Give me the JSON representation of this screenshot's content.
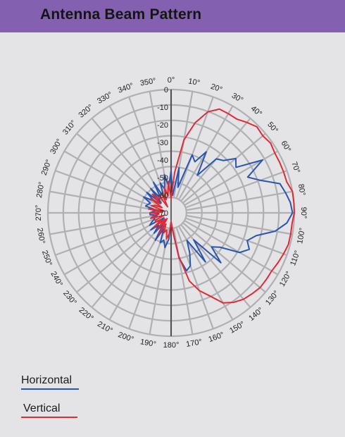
{
  "header": {
    "title": "Antenna Beam Pattern"
  },
  "colors": {
    "header_bg": "#8461b0",
    "horizontal": "#2a55b0",
    "vertical": "#e02a35",
    "grid": "#b0b0b4"
  },
  "legend": {
    "horizontal_label": "Horizontal",
    "vertical_label": "Vertical"
  },
  "chart_data": {
    "type": "polar",
    "title": "Antenna Beam Pattern",
    "angular_unit": "degrees",
    "angle_ticks": [
      "0°",
      "10°",
      "20°",
      "30°",
      "40°",
      "50°",
      "60°",
      "70°",
      "80°",
      "90°",
      "100°",
      "110°",
      "120°",
      "130°",
      "140°",
      "150°",
      "160°",
      "170°",
      "180°",
      "190°",
      "200°",
      "210°",
      "220°",
      "230°",
      "240°",
      "250°",
      "260°",
      "270°",
      "280°",
      "290°",
      "300°",
      "310°",
      "320°",
      "330°",
      "340°",
      "350°"
    ],
    "radial_ticks": [
      "0",
      "-10",
      "-20",
      "-30",
      "-40",
      "-50",
      "-60",
      "-70"
    ],
    "radial_range": [
      -70,
      0
    ],
    "legend_position": "bottom-left",
    "series": [
      {
        "name": "Horizontal",
        "color": "#2a55b0",
        "angles": [
          0,
          5,
          10,
          15,
          20,
          25,
          30,
          35,
          40,
          45,
          50,
          55,
          60,
          65,
          70,
          75,
          80,
          85,
          90,
          95,
          100,
          105,
          110,
          115,
          120,
          125,
          130,
          135,
          140,
          145,
          150,
          155,
          160,
          165,
          170,
          175,
          180,
          185,
          190,
          195,
          200,
          205,
          210,
          215,
          220,
          225,
          230,
          235,
          240,
          245,
          250,
          255,
          260,
          265,
          270,
          275,
          280,
          285,
          290,
          295,
          300,
          305,
          310,
          315,
          320,
          325,
          330,
          335,
          340,
          345,
          350,
          355
        ],
        "values": [
          -46,
          -60,
          -44,
          -55,
          -35,
          -38,
          -30,
          -44,
          -30,
          -28,
          -22,
          -25,
          -10,
          -22,
          -16,
          -6,
          -4,
          -2,
          -1,
          -4,
          -10,
          -20,
          -24,
          -21,
          -25,
          -36,
          -40,
          -30,
          -50,
          -36,
          -52,
          -45,
          -38,
          -36,
          -44,
          -60,
          -65,
          -55,
          -50,
          -54,
          -52,
          -60,
          -52,
          -62,
          -55,
          -60,
          -55,
          -65,
          -56,
          -58,
          -60,
          -60,
          -62,
          -58,
          -58,
          -60,
          -62,
          -55,
          -56,
          -57,
          -52,
          -58,
          -52,
          -62,
          -52,
          -60,
          -50,
          -60,
          -52,
          -56,
          -48,
          -55
        ]
      },
      {
        "name": "Vertical",
        "color": "#e02a35",
        "angles": [
          0,
          5,
          10,
          15,
          20,
          25,
          30,
          35,
          40,
          45,
          50,
          55,
          60,
          65,
          70,
          75,
          80,
          85,
          90,
          95,
          100,
          105,
          110,
          115,
          120,
          125,
          130,
          135,
          140,
          145,
          150,
          155,
          160,
          165,
          170,
          175,
          180,
          185,
          190,
          195,
          200,
          205,
          210,
          215,
          220,
          225,
          230,
          235,
          240,
          245,
          250,
          255,
          260,
          265,
          270,
          275,
          280,
          285,
          290,
          295,
          300,
          305,
          310,
          315,
          320,
          325,
          330,
          335,
          340,
          345,
          350,
          355
        ],
        "values": [
          -62,
          -47,
          -28,
          -17,
          -9,
          -5,
          -5,
          -5,
          -3,
          -1,
          -2,
          -1,
          -2,
          -2,
          -2,
          -2,
          0,
          0,
          0,
          -1,
          -1,
          -1,
          -2,
          -3,
          -4,
          -4,
          -4,
          -5,
          -6,
          -8,
          -11,
          -18,
          -23,
          -30,
          -45,
          -60,
          -65,
          -58,
          -55,
          -60,
          -58,
          -63,
          -56,
          -66,
          -58,
          -65,
          -57,
          -63,
          -60,
          -60,
          -66,
          -58,
          -60,
          -63,
          -58,
          -65,
          -57,
          -66,
          -58,
          -60,
          -64,
          -56,
          -62,
          -55,
          -60,
          -58,
          -66,
          -58,
          -62,
          -55,
          -60,
          -52
        ]
      }
    ]
  }
}
